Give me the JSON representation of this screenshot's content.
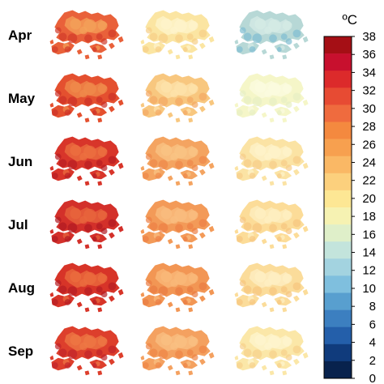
{
  "figure": {
    "rows": [
      {
        "month": "Apr",
        "panels": [
          {
            "base": "#e9613a",
            "light": "#f4a25a",
            "dark": "#d23a2a"
          },
          {
            "base": "#fbe5a2",
            "light": "#fdf4cc",
            "dark": "#f6cf86"
          },
          {
            "base": "#b7d8d6",
            "light": "#d5ebe6",
            "dark": "#7fbdd2"
          }
        ]
      },
      {
        "month": "May",
        "panels": [
          {
            "base": "#e4502f",
            "light": "#f08c4c",
            "dark": "#cc2f27"
          },
          {
            "base": "#f8c77f",
            "light": "#fde3ab",
            "dark": "#f3a863"
          },
          {
            "base": "#f5f6c8",
            "light": "#fbfbe0",
            "dark": "#e7efc3"
          }
        ]
      },
      {
        "month": "Jun",
        "panels": [
          {
            "base": "#d8352a",
            "light": "#ec7040",
            "dark": "#b81d22"
          },
          {
            "base": "#f4a461",
            "light": "#fac485",
            "dark": "#ee8848"
          },
          {
            "base": "#fbe3a4",
            "light": "#fef3cb",
            "dark": "#f6cc87"
          }
        ]
      },
      {
        "month": "Jul",
        "panels": [
          {
            "base": "#d3302a",
            "light": "#e8663d",
            "dark": "#b01a22"
          },
          {
            "base": "#f39a58",
            "light": "#f9bd80",
            "dark": "#ec7f44"
          },
          {
            "base": "#fcdc98",
            "light": "#feefc2",
            "dark": "#f7c57f"
          }
        ]
      },
      {
        "month": "Aug",
        "panels": [
          {
            "base": "#d73428",
            "light": "#eb6d3e",
            "dark": "#b51c22"
          },
          {
            "base": "#f29654",
            "light": "#f9b97b",
            "dark": "#ea7b42"
          },
          {
            "base": "#fbdc9a",
            "light": "#feefc4",
            "dark": "#f6c47e"
          }
        ]
      },
      {
        "month": "Sep",
        "panels": [
          {
            "base": "#dd3f2c",
            "light": "#ee7944",
            "dark": "#c0242a"
          },
          {
            "base": "#f4a160",
            "light": "#fac083",
            "dark": "#ee8546"
          },
          {
            "base": "#fbe7a8",
            "light": "#fef5cf",
            "dark": "#f7d08a"
          }
        ]
      }
    ]
  },
  "colorbar": {
    "unit": "ºC",
    "ticks": [
      "38",
      "36",
      "34",
      "32",
      "30",
      "28",
      "26",
      "24",
      "22",
      "20",
      "18",
      "16",
      "14",
      "12",
      "10",
      "8",
      "6",
      "4",
      "2",
      "0"
    ],
    "colors": [
      "#a50f15",
      "#c8102e",
      "#dc2a2b",
      "#e74b33",
      "#ef6b3e",
      "#f4893f",
      "#f7a04f",
      "#fab865",
      "#fcd07d",
      "#fde794",
      "#f6f2b2",
      "#dfefc9",
      "#c3e4dc",
      "#a3d3e0",
      "#7fbfde",
      "#589fcf",
      "#3c7fc0",
      "#245faa",
      "#103b7c",
      "#08224d"
    ]
  }
}
